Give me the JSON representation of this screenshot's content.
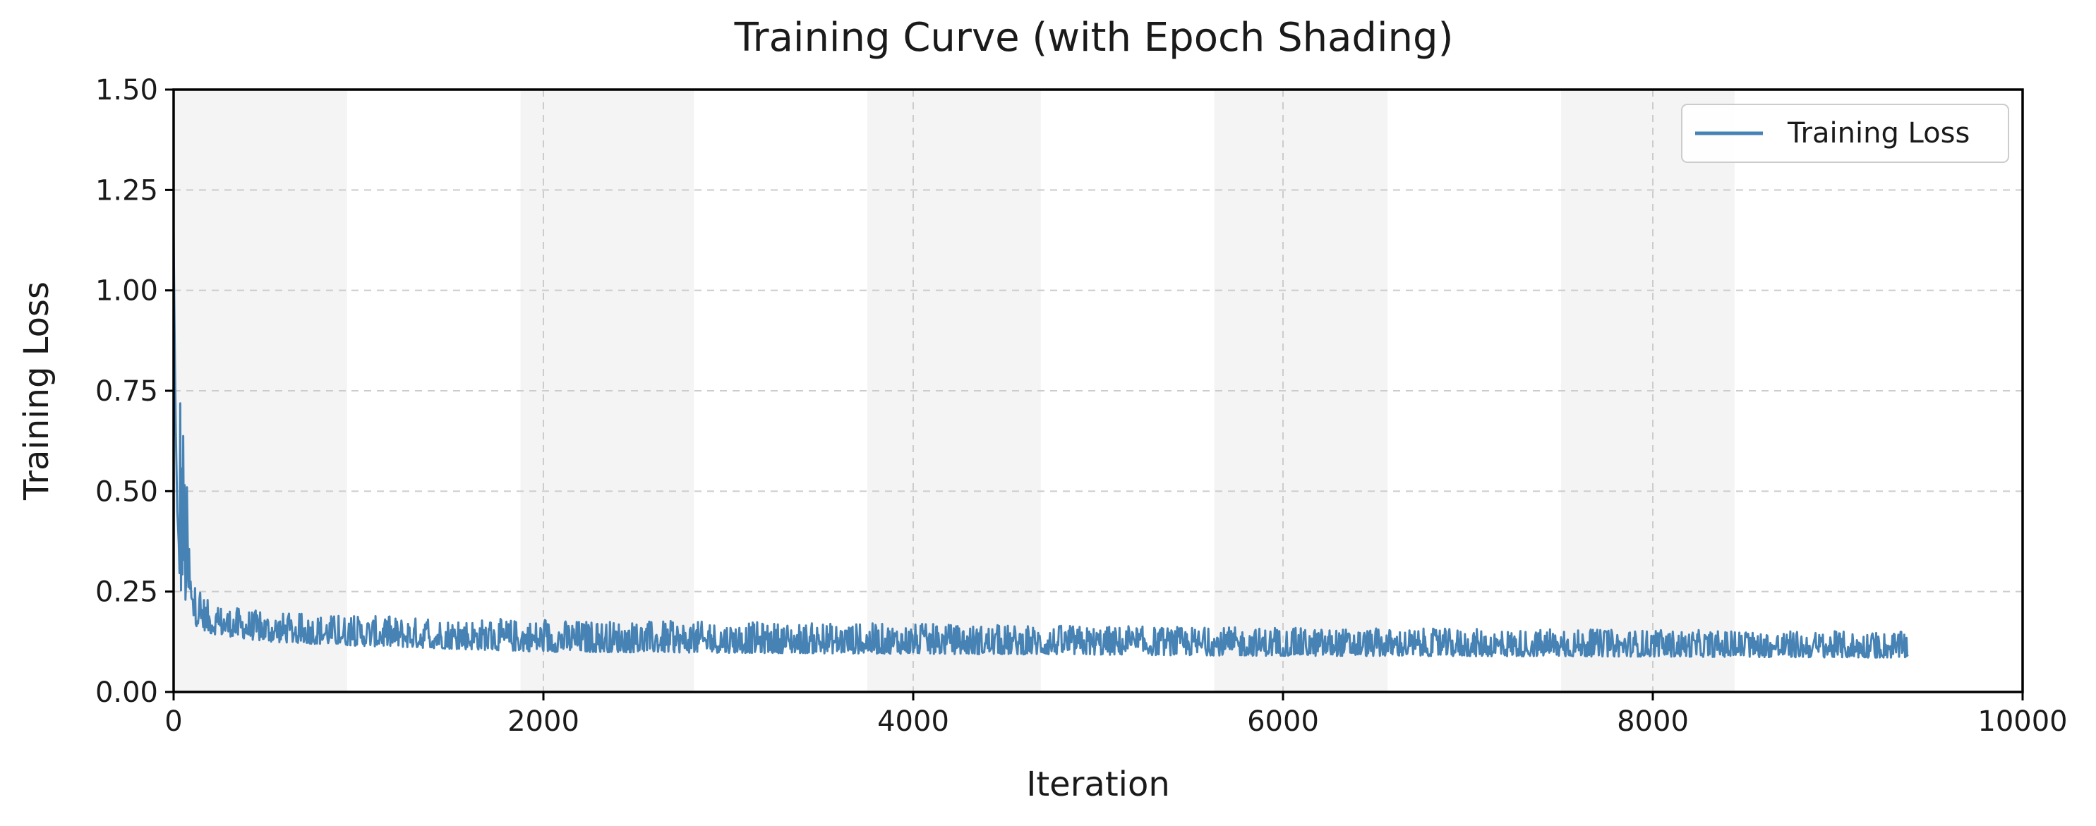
{
  "chart_data": {
    "type": "line",
    "title": "Training Curve (with Epoch Shading)",
    "xlabel": "Iteration",
    "ylabel": "Training Loss",
    "xlim": [
      0,
      10000
    ],
    "ylim": [
      0.0,
      1.5
    ],
    "xticks": [
      0,
      2000,
      4000,
      6000,
      8000,
      10000
    ],
    "xtick_labels": [
      "0",
      "2000",
      "4000",
      "6000",
      "8000",
      "10000"
    ],
    "yticks": [
      0.0,
      0.25,
      0.5,
      0.75,
      1.0,
      1.25,
      1.5
    ],
    "ytick_labels": [
      "0.00",
      "0.25",
      "0.50",
      "0.75",
      "1.00",
      "1.25",
      "1.50"
    ],
    "grid": true,
    "legend_position": "top-right",
    "epoch_shading": {
      "shaded_epochs": [
        [
          0,
          938
        ],
        [
          1876,
          2814
        ],
        [
          3752,
          4690
        ],
        [
          5628,
          6566
        ],
        [
          7504,
          8442
        ]
      ],
      "color": "#e6e6e6"
    },
    "series": [
      {
        "name": "Training Loss",
        "color": "#4682b4",
        "x": [
          0,
          10,
          20,
          30,
          40,
          60,
          80,
          100,
          150,
          200,
          300,
          400,
          500,
          700,
          1000,
          1500,
          2000,
          2500,
          3000,
          3500,
          4000,
          4500,
          5000,
          5500,
          6000,
          6500,
          7000,
          7500,
          8000,
          8500,
          9000,
          9380
        ],
        "y": [
          1.15,
          0.7,
          0.45,
          0.35,
          0.3,
          0.27,
          0.25,
          0.22,
          0.19,
          0.18,
          0.165,
          0.155,
          0.15,
          0.145,
          0.14,
          0.135,
          0.13,
          0.125,
          0.125,
          0.12,
          0.12,
          0.115,
          0.115,
          0.115,
          0.11,
          0.11,
          0.11,
          0.11,
          0.108,
          0.108,
          0.105,
          0.105
        ],
        "noise_band": {
          "x": [
            0,
            100,
            200,
            500,
            1000,
            2000,
            4000,
            6000,
            8000,
            9380
          ],
          "lower": [
            0.28,
            0.17,
            0.145,
            0.125,
            0.115,
            0.1,
            0.095,
            0.09,
            0.088,
            0.085
          ],
          "upper": [
            1.15,
            0.28,
            0.22,
            0.2,
            0.19,
            0.18,
            0.17,
            0.16,
            0.155,
            0.15
          ]
        }
      }
    ]
  }
}
